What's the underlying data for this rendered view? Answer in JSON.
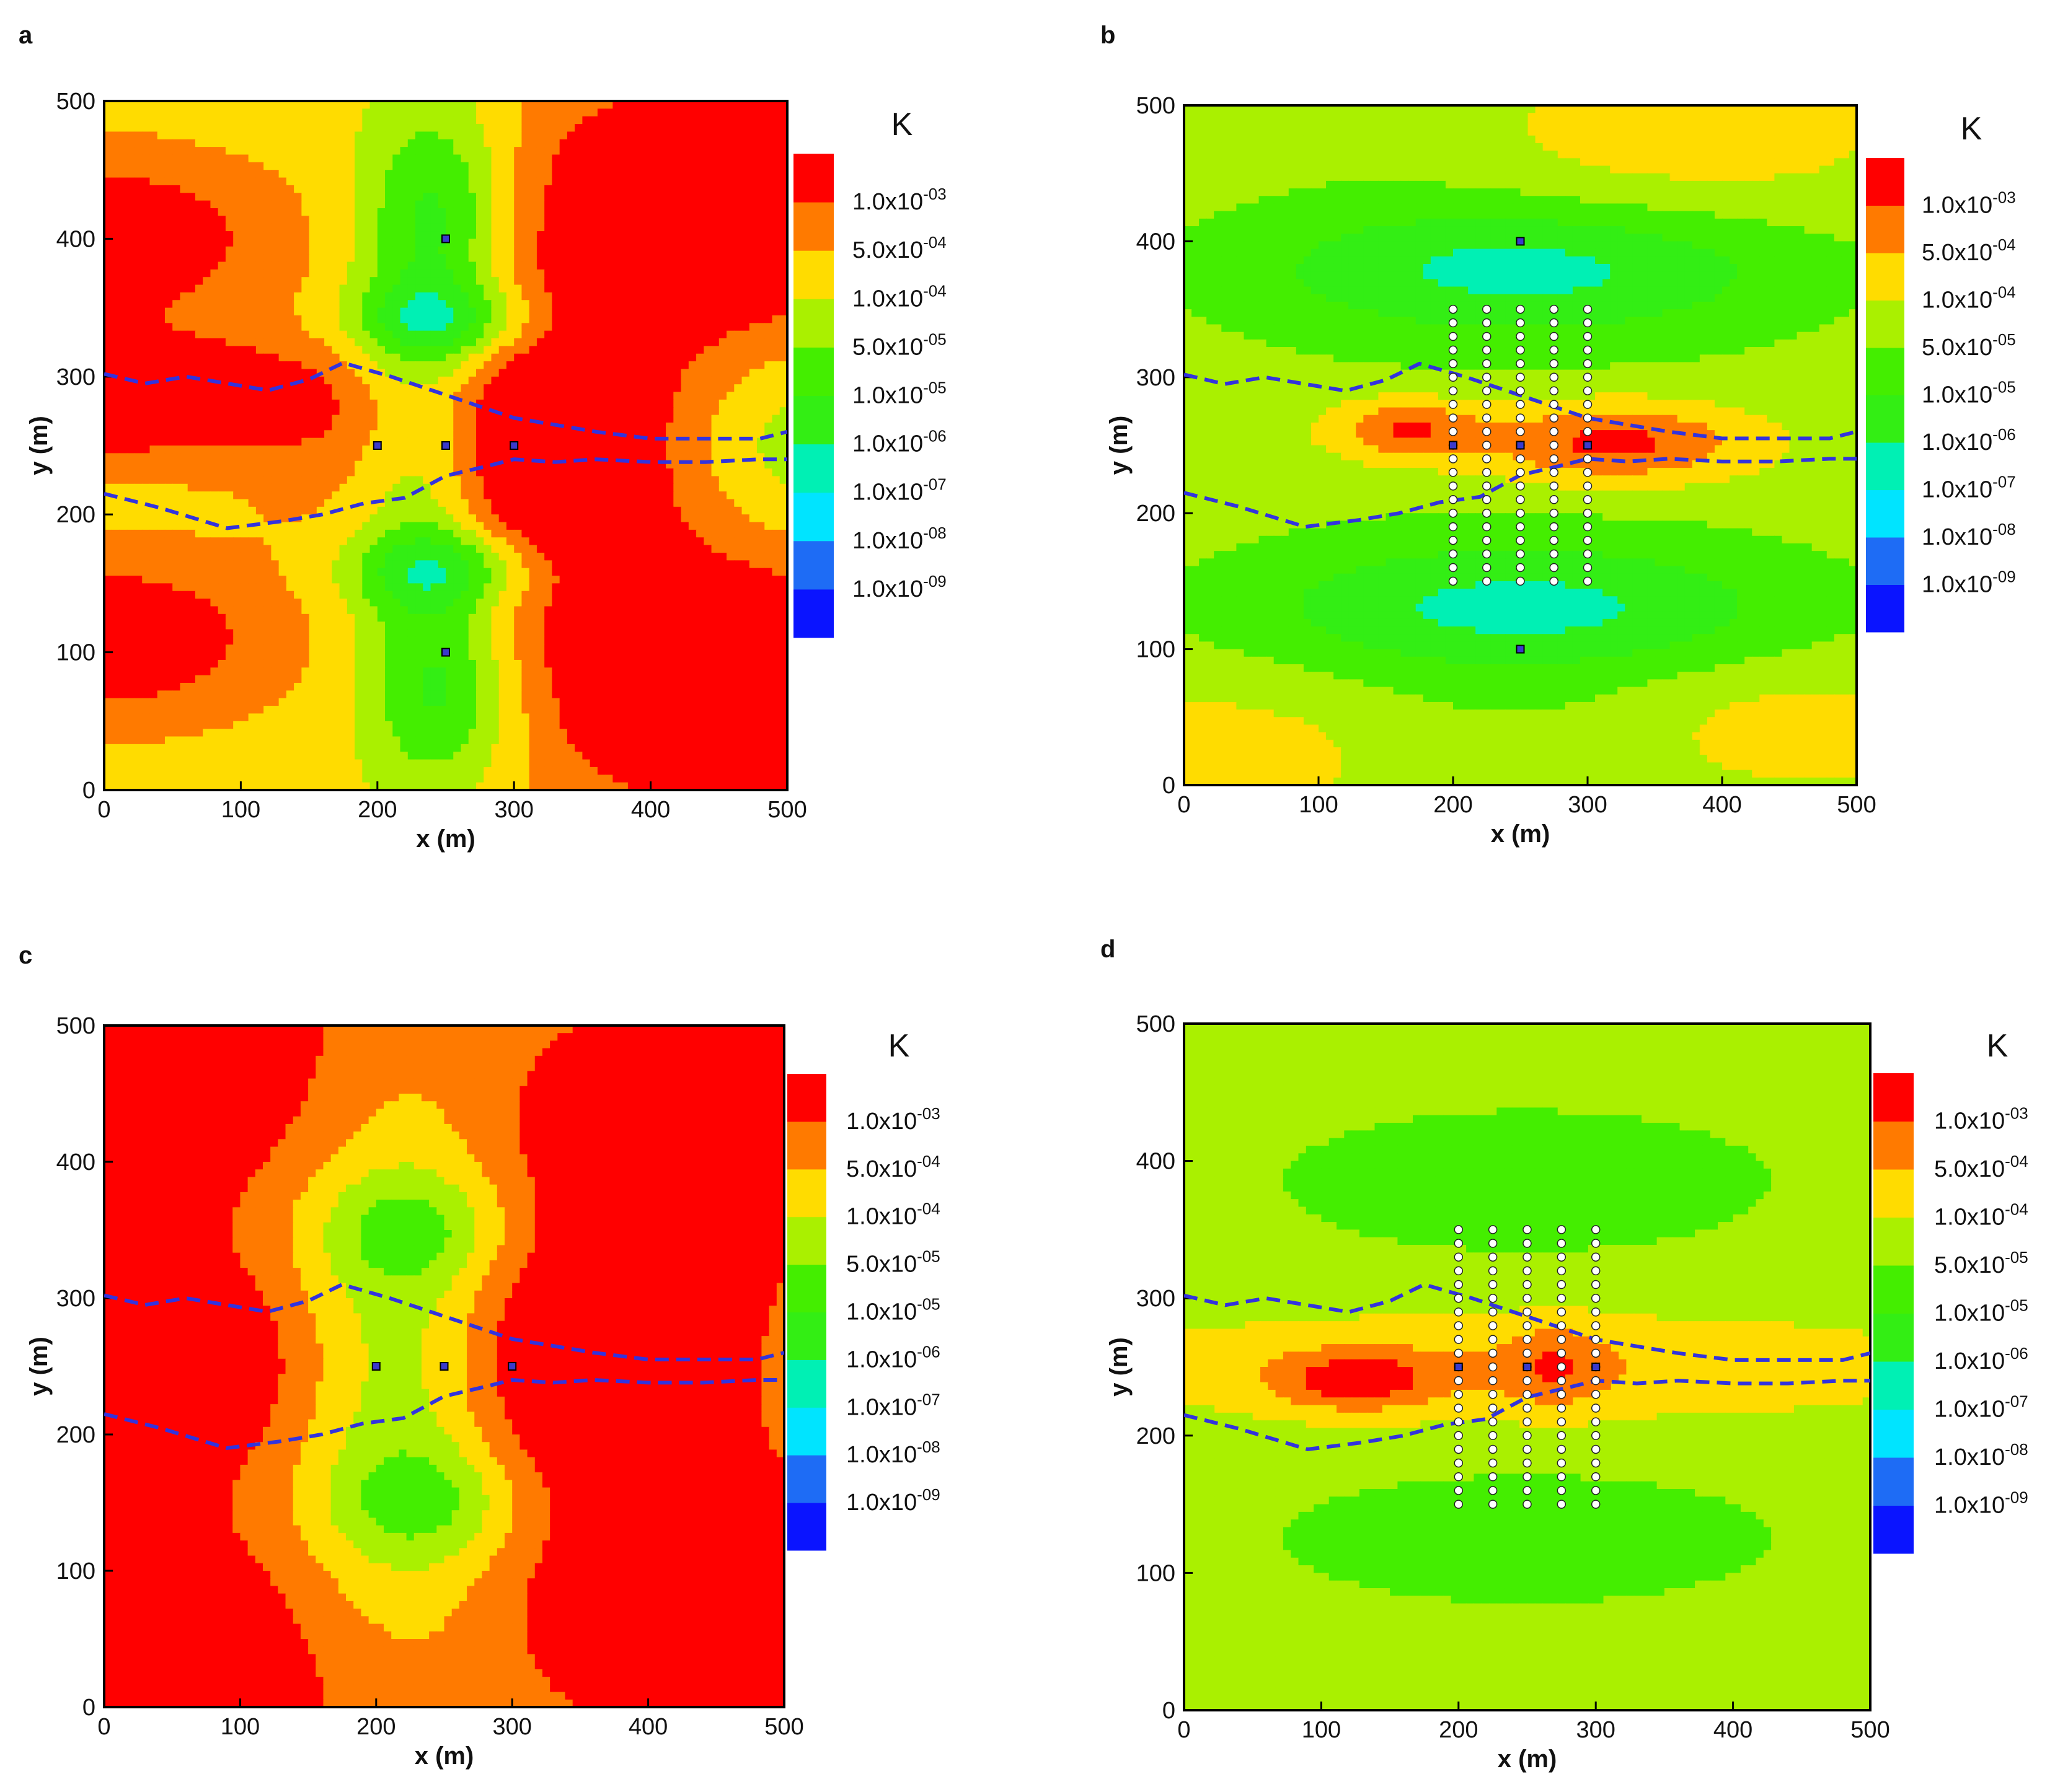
{
  "colors": {
    "levels": [
      "#0a14ff",
      "#1e6cf5",
      "#00e4ff",
      "#00f0b4",
      "#33ee14",
      "#44ee00",
      "#aaf000",
      "#ffdc00",
      "#ff7a00",
      "#ff0000"
    ],
    "boundary": "#3333dd",
    "frame": "#000000"
  },
  "colorbar": {
    "title": "K",
    "labels": [
      {
        "mant": "1.0x10",
        "exp": "-09"
      },
      {
        "mant": "1.0x10",
        "exp": "-08"
      },
      {
        "mant": "1.0x10",
        "exp": "-07"
      },
      {
        "mant": "1.0x10",
        "exp": "-06"
      },
      {
        "mant": "1.0x10",
        "exp": "-05"
      },
      {
        "mant": "5.0x10",
        "exp": "-05"
      },
      {
        "mant": "1.0x10",
        "exp": "-04"
      },
      {
        "mant": "5.0x10",
        "exp": "-04"
      },
      {
        "mant": "1.0x10",
        "exp": "-03"
      }
    ]
  },
  "chart_data": [
    {
      "type": "heatmap",
      "label": "a",
      "xlabel": "x (m)",
      "ylabel": "y (m)",
      "xlim": [
        0,
        500
      ],
      "ylim": [
        0,
        500
      ],
      "xticks": [
        "0",
        "100",
        "200",
        "300",
        "400",
        "500"
      ],
      "yticks": [
        "0",
        "100",
        "200",
        "300",
        "400",
        "500"
      ],
      "field_level_at_background": 7,
      "features": [
        {
          "x": 450,
          "y": 425,
          "rx": 160,
          "ry": 100,
          "amp": 3.2
        },
        {
          "x": 460,
          "y": 75,
          "rx": 160,
          "ry": 100,
          "amp": 3.2
        },
        {
          "x": 300,
          "y": 250,
          "rx": 130,
          "ry": 110,
          "amp": 3.5
        },
        {
          "x": 0,
          "y": 285,
          "rx": 170,
          "ry": 45,
          "amp": 3.0
        },
        {
          "x": 0,
          "y": 400,
          "rx": 120,
          "ry": 60,
          "amp": 2.6
        },
        {
          "x": 0,
          "y": 110,
          "rx": 120,
          "ry": 60,
          "amp": 2.6
        },
        {
          "x": 235,
          "y": 250,
          "rx": 55,
          "ry": 220,
          "amp": -3.2
        },
        {
          "x": 250,
          "y": 340,
          "rx": 75,
          "ry": 30,
          "amp": -2.6
        },
        {
          "x": 250,
          "y": 160,
          "rx": 75,
          "ry": 30,
          "amp": -2.6
        },
        {
          "x": 250,
          "y": 420,
          "rx": 55,
          "ry": 70,
          "amp": -1.8
        },
        {
          "x": 255,
          "y": 70,
          "rx": 55,
          "ry": 60,
          "amp": -1.8
        },
        {
          "x": 500,
          "y": 250,
          "rx": 80,
          "ry": 70,
          "amp": -1.4
        }
      ],
      "wells": [
        [
          250,
          400
        ],
        [
          200,
          250
        ],
        [
          250,
          250
        ],
        [
          300,
          250
        ],
        [
          250,
          100
        ]
      ],
      "observation_points": false,
      "boundaries": [
        [
          [
            0,
            302
          ],
          [
            30,
            295
          ],
          [
            60,
            300
          ],
          [
            90,
            295
          ],
          [
            120,
            290
          ],
          [
            150,
            298
          ],
          [
            175,
            310
          ],
          [
            210,
            300
          ],
          [
            240,
            290
          ],
          [
            270,
            280
          ],
          [
            300,
            270
          ],
          [
            330,
            265
          ],
          [
            360,
            260
          ],
          [
            400,
            255
          ],
          [
            440,
            255
          ],
          [
            480,
            255
          ],
          [
            500,
            260
          ]
        ],
        [
          [
            0,
            215
          ],
          [
            40,
            205
          ],
          [
            90,
            190
          ],
          [
            130,
            195
          ],
          [
            160,
            200
          ],
          [
            190,
            208
          ],
          [
            220,
            212
          ],
          [
            250,
            228
          ],
          [
            280,
            235
          ],
          [
            300,
            240
          ],
          [
            330,
            238
          ],
          [
            360,
            240
          ],
          [
            400,
            238
          ],
          [
            440,
            238
          ],
          [
            480,
            240
          ],
          [
            500,
            240
          ]
        ]
      ]
    },
    {
      "type": "heatmap",
      "label": "b",
      "xlabel": "x (m)",
      "ylabel": "y (m)",
      "xlim": [
        0,
        500
      ],
      "ylim": [
        0,
        500
      ],
      "xticks": [
        "0",
        "100",
        "200",
        "300",
        "400",
        "500"
      ],
      "yticks": [
        "0",
        "100",
        "200",
        "300",
        "400",
        "500"
      ],
      "field_level_at_background": 6,
      "features": [
        {
          "x": 250,
          "y": 380,
          "rx": 200,
          "ry": 45,
          "amp": -2.2
        },
        {
          "x": 250,
          "y": 130,
          "rx": 200,
          "ry": 45,
          "amp": -2.2
        },
        {
          "x": 250,
          "y": 250,
          "rx": 230,
          "ry": 320,
          "amp": -0.8
        },
        {
          "x": 320,
          "y": 252,
          "rx": 100,
          "ry": 30,
          "amp": 2.8
        },
        {
          "x": 165,
          "y": 262,
          "rx": 55,
          "ry": 22,
          "amp": 2.4
        },
        {
          "x": 240,
          "y": 250,
          "rx": 240,
          "ry": 60,
          "amp": 0.8
        },
        {
          "x": 360,
          "y": 480,
          "rx": 160,
          "ry": 60,
          "amp": 1.5
        },
        {
          "x": 40,
          "y": 20,
          "rx": 130,
          "ry": 60,
          "amp": 1.2
        },
        {
          "x": 450,
          "y": 40,
          "rx": 130,
          "ry": 50,
          "amp": 1.2
        }
      ],
      "wells": [
        [
          250,
          400
        ],
        [
          200,
          250
        ],
        [
          250,
          250
        ],
        [
          300,
          250
        ],
        [
          250,
          100
        ]
      ],
      "observation_points": true,
      "boundaries": [
        [
          [
            0,
            302
          ],
          [
            30,
            295
          ],
          [
            60,
            300
          ],
          [
            90,
            295
          ],
          [
            120,
            290
          ],
          [
            150,
            298
          ],
          [
            175,
            310
          ],
          [
            210,
            300
          ],
          [
            240,
            290
          ],
          [
            270,
            280
          ],
          [
            300,
            270
          ],
          [
            330,
            265
          ],
          [
            360,
            260
          ],
          [
            400,
            255
          ],
          [
            440,
            255
          ],
          [
            480,
            255
          ],
          [
            500,
            260
          ]
        ],
        [
          [
            0,
            215
          ],
          [
            40,
            205
          ],
          [
            90,
            190
          ],
          [
            130,
            195
          ],
          [
            160,
            200
          ],
          [
            190,
            208
          ],
          [
            220,
            212
          ],
          [
            250,
            228
          ],
          [
            280,
            235
          ],
          [
            300,
            240
          ],
          [
            330,
            238
          ],
          [
            360,
            240
          ],
          [
            400,
            238
          ],
          [
            440,
            238
          ],
          [
            480,
            240
          ],
          [
            500,
            240
          ]
        ]
      ]
    },
    {
      "type": "heatmap",
      "label": "c",
      "xlabel": "x (m)",
      "ylabel": "y (m)",
      "xlim": [
        0,
        500
      ],
      "ylim": [
        0,
        500
      ],
      "xticks": [
        "0",
        "100",
        "200",
        "300",
        "400",
        "500"
      ],
      "yticks": [
        "0",
        "100",
        "200",
        "300",
        "400",
        "500"
      ],
      "field_level_at_background": 7,
      "features": [
        {
          "x": 0,
          "y": 480,
          "rx": 200,
          "ry": 140,
          "amp": 3.2
        },
        {
          "x": 0,
          "y": 20,
          "rx": 200,
          "ry": 140,
          "amp": 3.2
        },
        {
          "x": 0,
          "y": 250,
          "rx": 160,
          "ry": 80,
          "amp": 3.0
        },
        {
          "x": 470,
          "y": 440,
          "rx": 170,
          "ry": 100,
          "amp": 3.2
        },
        {
          "x": 470,
          "y": 60,
          "rx": 170,
          "ry": 100,
          "amp": 3.2
        },
        {
          "x": 340,
          "y": 255,
          "rx": 160,
          "ry": 120,
          "amp": 3.0
        },
        {
          "x": 220,
          "y": 250,
          "rx": 80,
          "ry": 180,
          "amp": -3.0
        },
        {
          "x": 230,
          "y": 350,
          "rx": 70,
          "ry": 40,
          "amp": -1.6
        },
        {
          "x": 240,
          "y": 150,
          "rx": 70,
          "ry": 40,
          "amp": -1.6
        }
      ],
      "wells": [
        [
          200,
          250
        ],
        [
          250,
          250
        ],
        [
          300,
          250
        ]
      ],
      "observation_points": false,
      "boundaries": [
        [
          [
            0,
            302
          ],
          [
            30,
            295
          ],
          [
            60,
            300
          ],
          [
            90,
            295
          ],
          [
            120,
            290
          ],
          [
            150,
            298
          ],
          [
            175,
            310
          ],
          [
            210,
            300
          ],
          [
            240,
            290
          ],
          [
            270,
            280
          ],
          [
            300,
            270
          ],
          [
            330,
            265
          ],
          [
            360,
            260
          ],
          [
            400,
            255
          ],
          [
            440,
            255
          ],
          [
            480,
            255
          ],
          [
            500,
            260
          ]
        ],
        [
          [
            0,
            215
          ],
          [
            40,
            205
          ],
          [
            90,
            190
          ],
          [
            130,
            195
          ],
          [
            160,
            200
          ],
          [
            190,
            208
          ],
          [
            220,
            212
          ],
          [
            250,
            228
          ],
          [
            280,
            235
          ],
          [
            300,
            240
          ],
          [
            330,
            238
          ],
          [
            360,
            240
          ],
          [
            400,
            238
          ],
          [
            440,
            238
          ],
          [
            480,
            240
          ],
          [
            500,
            240
          ]
        ]
      ]
    },
    {
      "type": "heatmap",
      "label": "d",
      "xlabel": "x (m)",
      "ylabel": "y (m)",
      "xlim": [
        0,
        500
      ],
      "ylim": [
        0,
        500
      ],
      "xticks": [
        "0",
        "100",
        "200",
        "300",
        "400",
        "500"
      ],
      "yticks": [
        "0",
        "100",
        "200",
        "300",
        "400",
        "500"
      ],
      "field_level_at_background": 6,
      "features": [
        {
          "x": 250,
          "y": 385,
          "rx": 190,
          "ry": 55,
          "amp": -1.2
        },
        {
          "x": 250,
          "y": 125,
          "rx": 190,
          "ry": 50,
          "amp": -1.2
        },
        {
          "x": 250,
          "y": 250,
          "rx": 330,
          "ry": 40,
          "amp": 1.3
        },
        {
          "x": 125,
          "y": 240,
          "rx": 60,
          "ry": 22,
          "amp": 2.3
        },
        {
          "x": 270,
          "y": 250,
          "rx": 40,
          "ry": 30,
          "amp": 1.4
        }
      ],
      "wells": [
        [
          200,
          250
        ],
        [
          250,
          250
        ],
        [
          300,
          250
        ]
      ],
      "observation_points": true,
      "boundaries": [
        [
          [
            0,
            302
          ],
          [
            30,
            295
          ],
          [
            60,
            300
          ],
          [
            90,
            295
          ],
          [
            120,
            290
          ],
          [
            150,
            298
          ],
          [
            175,
            310
          ],
          [
            210,
            300
          ],
          [
            240,
            290
          ],
          [
            270,
            280
          ],
          [
            300,
            270
          ],
          [
            330,
            265
          ],
          [
            360,
            260
          ],
          [
            400,
            255
          ],
          [
            440,
            255
          ],
          [
            480,
            255
          ],
          [
            500,
            260
          ]
        ],
        [
          [
            0,
            215
          ],
          [
            40,
            205
          ],
          [
            90,
            190
          ],
          [
            130,
            195
          ],
          [
            160,
            200
          ],
          [
            190,
            208
          ],
          [
            220,
            212
          ],
          [
            250,
            228
          ],
          [
            280,
            235
          ],
          [
            300,
            240
          ],
          [
            330,
            238
          ],
          [
            360,
            240
          ],
          [
            400,
            238
          ],
          [
            440,
            238
          ],
          [
            480,
            240
          ],
          [
            500,
            240
          ]
        ]
      ]
    }
  ],
  "observation_grid": {
    "x": [
      200,
      225,
      250,
      275,
      300
    ],
    "y_start": 150,
    "y_end": 350,
    "y_step": 10
  }
}
